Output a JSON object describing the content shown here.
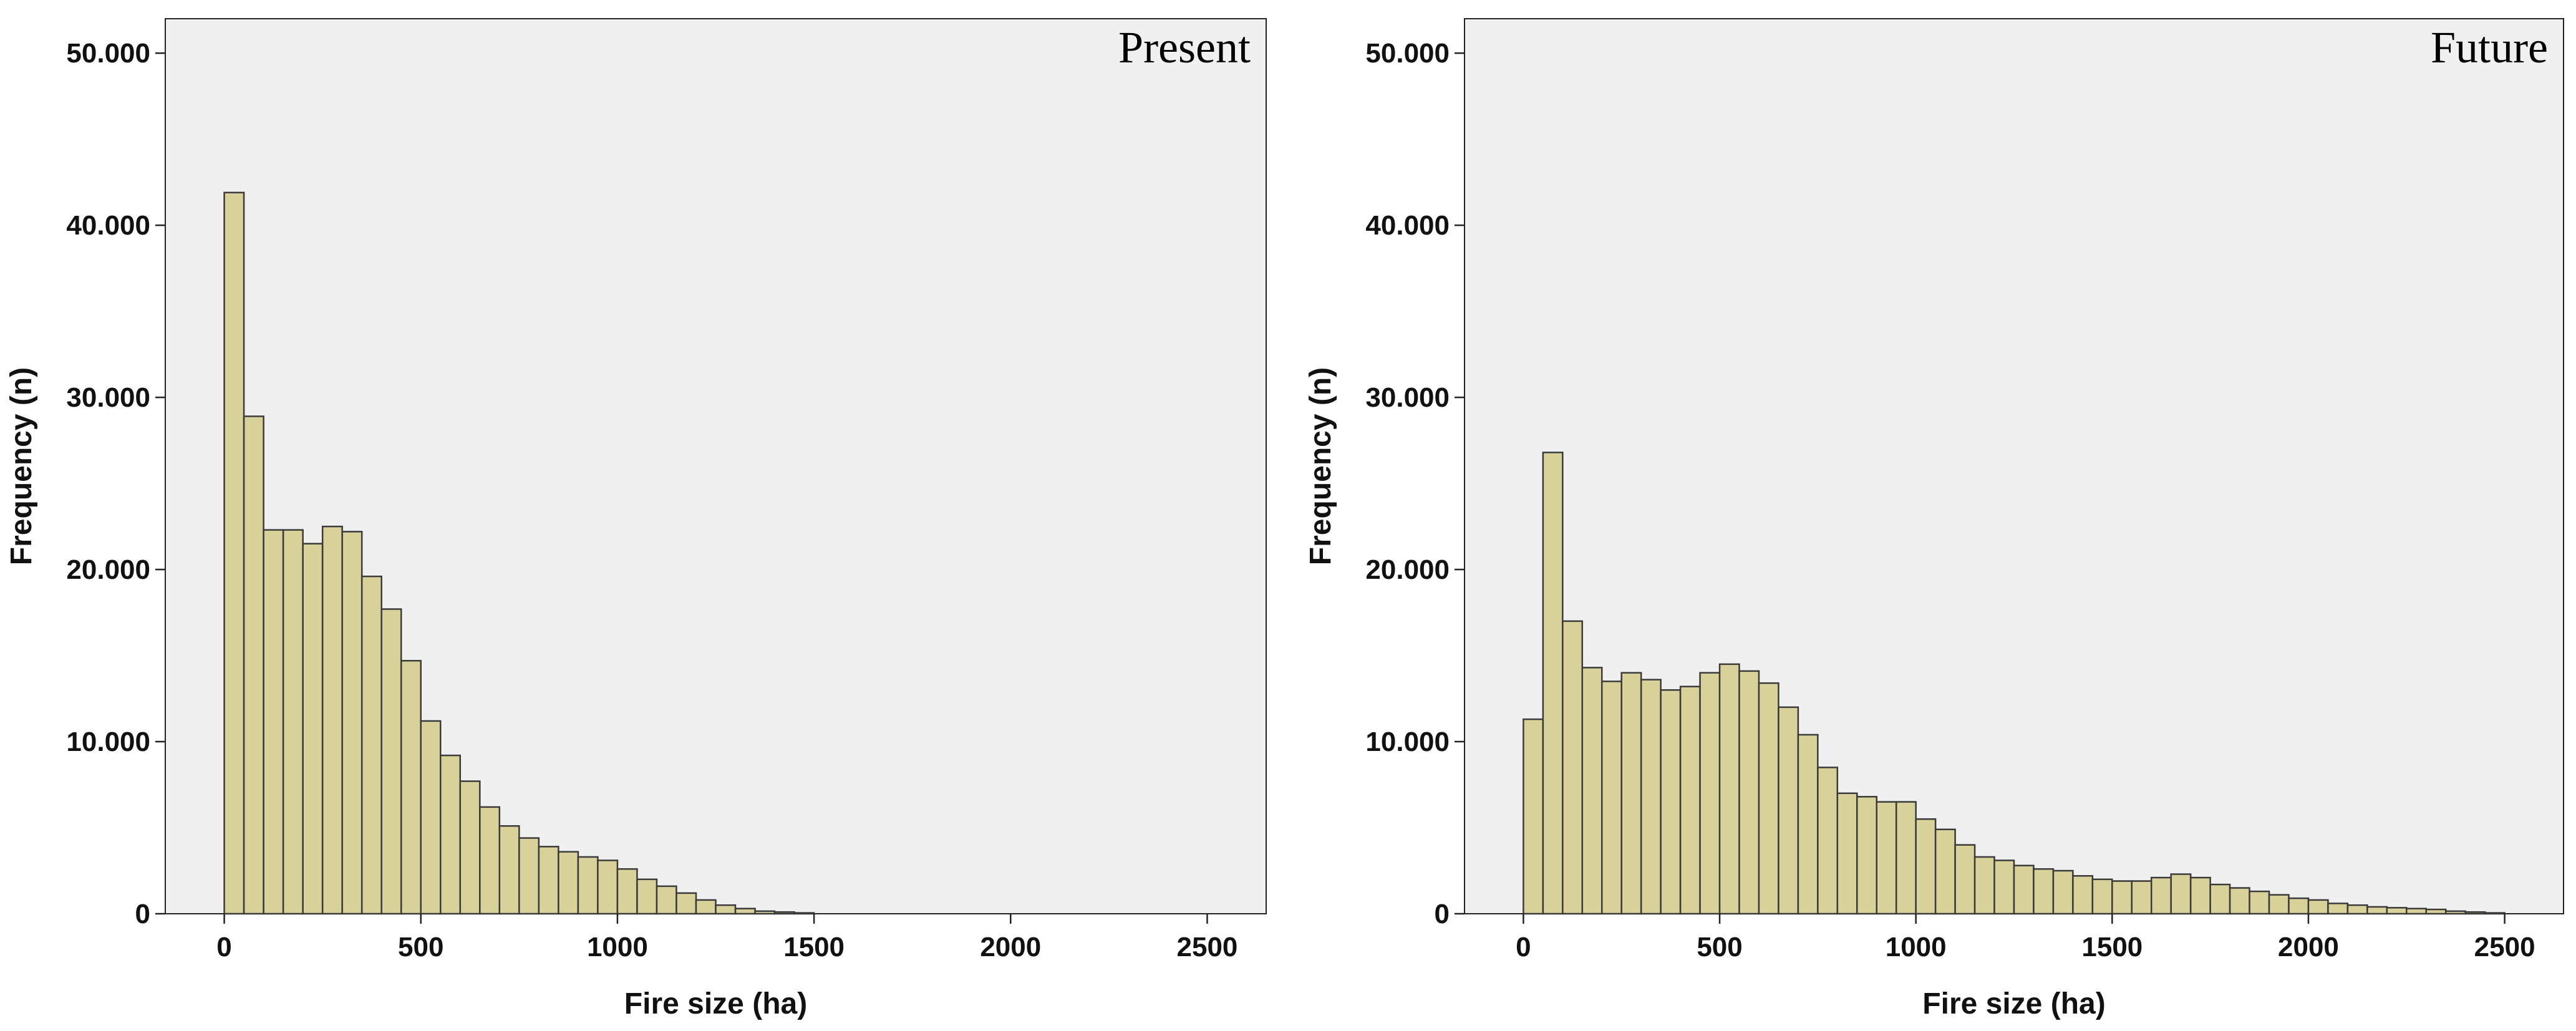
{
  "colors": {
    "plot_background": "#f0f0f0",
    "bar_fill": "#d8d19a",
    "bar_stroke": "#3a3a3a",
    "axis": "#222222"
  },
  "chart_data": [
    {
      "type": "bar",
      "panel_label": "Present",
      "xlabel": "Fire size (ha)",
      "ylabel": "Frequency (n)",
      "xlim": [
        -150,
        2650
      ],
      "ylim": [
        0,
        52000
      ],
      "x_ticks": [
        0,
        500,
        1000,
        1500,
        2000,
        2500
      ],
      "x_tick_labels": [
        "0",
        "500",
        "1000",
        "1500",
        "2000",
        "2500"
      ],
      "y_ticks": [
        0,
        10000,
        20000,
        30000,
        40000,
        50000
      ],
      "y_tick_labels": [
        "0",
        "10.000",
        "20.000",
        "30.000",
        "40.000",
        "50.000"
      ],
      "bin_width": 50,
      "bin_start": 0,
      "values": [
        41900,
        28900,
        22300,
        22300,
        21500,
        22500,
        22200,
        19600,
        17700,
        14700,
        11200,
        9200,
        7700,
        6200,
        5100,
        4400,
        3900,
        3600,
        3300,
        3100,
        2600,
        2000,
        1600,
        1200,
        800,
        500,
        300,
        150,
        100,
        50
      ],
      "grid": false
    },
    {
      "type": "bar",
      "panel_label": "Future",
      "xlabel": "Fire size (ha)",
      "ylabel": "Frequency (n)",
      "xlim": [
        -150,
        2650
      ],
      "ylim": [
        0,
        52000
      ],
      "x_ticks": [
        0,
        500,
        1000,
        1500,
        2000,
        2500
      ],
      "x_tick_labels": [
        "0",
        "500",
        "1000",
        "1500",
        "2000",
        "2500"
      ],
      "y_ticks": [
        0,
        10000,
        20000,
        30000,
        40000,
        50000
      ],
      "y_tick_labels": [
        "0",
        "10.000",
        "20.000",
        "30.000",
        "40.000",
        "50.000"
      ],
      "bin_width": 50,
      "bin_start": 0,
      "values": [
        11300,
        26800,
        17000,
        14300,
        13500,
        14000,
        13600,
        13000,
        13200,
        14000,
        14500,
        14100,
        13400,
        12000,
        10400,
        8500,
        7000,
        6800,
        6500,
        6500,
        5500,
        4900,
        4000,
        3300,
        3100,
        2800,
        2600,
        2500,
        2200,
        2000,
        1900,
        1900,
        2100,
        2300,
        2100,
        1700,
        1500,
        1300,
        1100,
        900,
        800,
        600,
        500,
        400,
        350,
        300,
        250,
        150,
        100,
        50
      ],
      "grid": false
    }
  ]
}
